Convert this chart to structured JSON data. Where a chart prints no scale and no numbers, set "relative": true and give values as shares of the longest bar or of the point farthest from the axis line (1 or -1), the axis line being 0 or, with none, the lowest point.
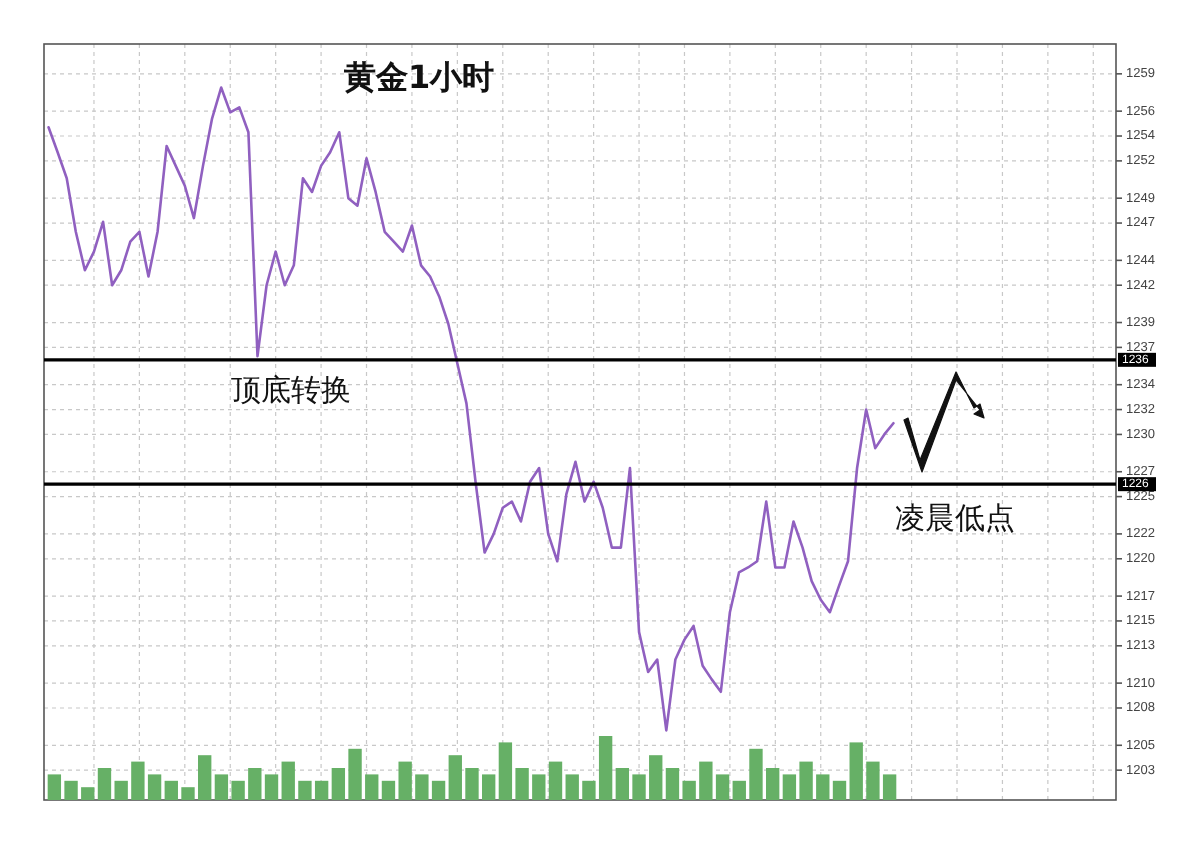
{
  "chart_data": [
    {
      "type": "line",
      "title": "黄金1小时",
      "categories": [
        null,
        null,
        null,
        null,
        null,
        null,
        null,
        null,
        null,
        null,
        null,
        null,
        null,
        null,
        null,
        null,
        null,
        null,
        null,
        null,
        null,
        null,
        null,
        null,
        null,
        null,
        null,
        null,
        null,
        null,
        null,
        null,
        null,
        null,
        null,
        null,
        null,
        null,
        null,
        null,
        null,
        null,
        null,
        null,
        null,
        null,
        null,
        null,
        null,
        null,
        null,
        null,
        null,
        null,
        null,
        null,
        null,
        null,
        null,
        null,
        null,
        null,
        null,
        null,
        null,
        null,
        null,
        null,
        null,
        null,
        null,
        null,
        null,
        null,
        null,
        null,
        null,
        null,
        null,
        null,
        null,
        null,
        null,
        null,
        null,
        null,
        null,
        null,
        null,
        null,
        null,
        null,
        null,
        null,
        null,
        null,
        null,
        null,
        null,
        null,
        null,
        null,
        null,
        null,
        null,
        null,
        null,
        null,
        null,
        null,
        null,
        null,
        null,
        null,
        null,
        null,
        null,
        null
      ],
      "values": [
        1254.7,
        1252.7,
        1250.6,
        1246.3,
        1243.2,
        1244.7,
        1247.1,
        1242.0,
        1243.2,
        1245.5,
        1246.3,
        1242.7,
        1246.3,
        1253.2,
        1251.6,
        1250.0,
        1247.4,
        1251.6,
        1255.4,
        1257.9,
        1255.9,
        1256.3,
        1254.3,
        1236.3,
        1242.0,
        1244.7,
        1242.0,
        1243.6,
        1250.6,
        1249.5,
        1251.6,
        1252.7,
        1254.3,
        1249.0,
        1248.4,
        1252.2,
        1249.5,
        1246.3,
        1245.5,
        1244.7,
        1246.8,
        1243.6,
        1242.7,
        1241.1,
        1238.9,
        1235.7,
        1232.5,
        1226.2,
        1220.5,
        1222.0,
        1224.1,
        1224.6,
        1223.0,
        1226.2,
        1227.3,
        1222.0,
        1219.8,
        1225.2,
        1227.8,
        1224.6,
        1226.2,
        1224.1,
        1220.9,
        1220.9,
        1227.3,
        1214.1,
        1210.9,
        1211.9,
        1206.2,
        1211.9,
        1213.5,
        1214.6,
        1211.4,
        1210.3,
        1209.3,
        1215.7,
        1218.9,
        1219.3,
        1219.8,
        1224.6,
        1219.3,
        1219.3,
        1223.0,
        1220.9,
        1218.2,
        1216.7,
        1215.7,
        1217.8,
        1219.8,
        1227.3,
        1232.0,
        1228.9,
        1230.0,
        1230.9,
        null,
        null,
        null,
        null,
        null,
        null,
        null,
        null,
        null,
        null,
        null,
        null,
        null,
        null,
        null,
        null,
        null,
        null,
        null,
        null,
        null,
        null,
        null,
        null
      ],
      "color": "#9060c0",
      "ylim": [
        1200.6,
        1261.4
      ],
      "yticks": [
        1203,
        1205,
        1208,
        1210,
        1213,
        1215,
        1217,
        1220,
        1222,
        1225,
        1227,
        1230,
        1232,
        1234,
        1237,
        1239,
        1242,
        1244,
        1247,
        1249,
        1252,
        1254,
        1256,
        1259
      ],
      "tick_labels": "y",
      "grid": true,
      "ref_lines": [
        {
          "axis": "y",
          "value": 1236,
          "label": "1236",
          "color": "#000000"
        },
        {
          "axis": "y",
          "value": 1226,
          "label": "1226",
          "color": "#000000"
        }
      ],
      "annotations": [
        "顶底转换",
        "凌晨低点"
      ]
    },
    {
      "type": "bar",
      "relative": true,
      "color": "#66b066",
      "categories": [
        null,
        null,
        null,
        null,
        null,
        null,
        null,
        null,
        null,
        null,
        null,
        null,
        null,
        null,
        null,
        null,
        null,
        null,
        null,
        null,
        null,
        null,
        null,
        null,
        null,
        null,
        null,
        null,
        null,
        null,
        null,
        null,
        null,
        null,
        null,
        null,
        null,
        null,
        null,
        null,
        null,
        null,
        null,
        null,
        null,
        null,
        null,
        null,
        null,
        null,
        null
      ],
      "values": [
        0.4,
        0.3,
        0.2,
        0.5,
        0.3,
        0.6,
        0.4,
        0.3,
        0.2,
        0.7,
        0.4,
        0.3,
        0.5,
        0.4,
        0.6,
        0.3,
        0.3,
        0.5,
        0.8,
        0.4,
        0.3,
        0.6,
        0.4,
        0.3,
        0.7,
        0.5,
        0.4,
        0.9,
        0.5,
        0.4,
        0.6,
        0.4,
        0.3,
        1.0,
        0.5,
        0.4,
        0.7,
        0.5,
        0.3,
        0.6,
        0.4,
        0.3,
        0.8,
        0.5,
        0.4,
        0.6,
        0.4,
        0.3,
        0.9,
        0.6,
        0.4
      ]
    }
  ]
}
